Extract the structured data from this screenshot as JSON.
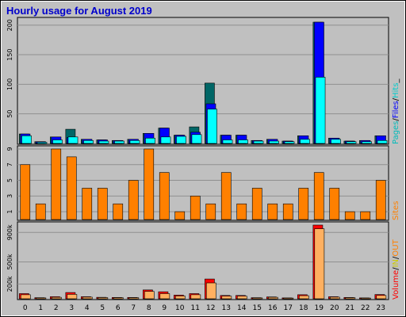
{
  "chart_data": {
    "type": "bar",
    "title": "Hourly usage for August 2019",
    "hours": [
      "0",
      "1",
      "2",
      "3",
      "4",
      "5",
      "6",
      "7",
      "8",
      "9",
      "10",
      "11",
      "12",
      "13",
      "14",
      "15",
      "16",
      "17",
      "18",
      "19",
      "20",
      "21",
      "22",
      "23"
    ],
    "colors": {
      "title": "#0000cc",
      "background": "#c0c0c0",
      "pages": "#006666",
      "files": "#0000ff",
      "hits": "#00ffff",
      "sites": "#ff8000",
      "volume": "#ff0000",
      "in": "#ffff00",
      "out": "#ff8000",
      "visits_legend": "#00aa00"
    },
    "panels": [
      {
        "id": "top",
        "legend": [
          {
            "text": "Pages",
            "color": "#00bbbb"
          },
          {
            "text": "/",
            "color": "#000000"
          },
          {
            "text": "Files",
            "color": "#0000ff"
          },
          {
            "text": "/",
            "color": "#000000"
          },
          {
            "text": "Hits",
            "color": "#00cccc"
          },
          {
            "text": "_",
            "color": "#000000"
          }
        ],
        "ylim": [
          0,
          205
        ],
        "ticks": [
          "50",
          "100",
          "150",
          "200"
        ],
        "tick_values": [
          50,
          100,
          150,
          200
        ],
        "series": [
          {
            "values": [
              16,
              3,
              11,
              24,
              7,
              6,
              5,
              7,
              17,
              26,
              14,
              28,
              102,
              14,
              14,
              5,
              7,
              4,
              13,
              205,
              9,
              4,
              5,
              13
            ]
          },
          {
            "values": [
              16,
              3,
              11,
              10,
              7,
              6,
              5,
              7,
              17,
              26,
              14,
              19,
              67,
              14,
              14,
              5,
              7,
              4,
              13,
              205,
              9,
              4,
              5,
              13
            ]
          },
          {
            "values": [
              13,
              2,
              6,
              11,
              5,
              4,
              4,
              5,
              9,
              11,
              12,
              15,
              58,
              6,
              6,
              4,
              4,
              3,
              7,
              112,
              7,
              3,
              3,
              5
            ]
          }
        ]
      },
      {
        "id": "middle",
        "legend": [
          {
            "text": "Sites",
            "color": "#ff8000"
          }
        ],
        "ylim": [
          0,
          9
        ],
        "ticks": [
          "1",
          "3",
          "5",
          "7",
          "9"
        ],
        "tick_values": [
          1,
          3,
          5,
          7,
          9
        ],
        "series": [
          {
            "values": [
              7,
              2,
              9,
              8,
              4,
              4,
              2,
              5,
              9,
              6,
              1,
              3,
              2,
              6,
              2,
              4,
              2,
              2,
              4,
              6,
              4,
              1,
              1,
              5
            ]
          }
        ]
      },
      {
        "id": "bottom",
        "legend": [
          {
            "text": "Volume",
            "color": "#ff0000"
          },
          {
            "text": "/",
            "color": "#000000"
          },
          {
            "text": "IN",
            "color": "#cccc00"
          },
          {
            "text": "/",
            "color": "#000000"
          },
          {
            "text": "OUT",
            "color": "#ff8000"
          },
          {
            "text": "Sites",
            "color": "#ff8000",
            "hidden": true
          }
        ],
        "legend_unit": "Volume / IN / OUT",
        "ylim": [
          0,
          1000
        ],
        "ticks": [
          "200k",
          "500k",
          "900k"
        ],
        "tick_values": [
          200,
          500,
          900
        ],
        "series": [
          {
            "values": [
              70,
              15,
              28,
              85,
              28,
              20,
              18,
              18,
              120,
              95,
              50,
              70,
              268,
              45,
              45,
              15,
              25,
              12,
              55,
              1000,
              28,
              18,
              12,
              58
            ]
          },
          {
            "values": [
              55,
              12,
              20,
              60,
              22,
              16,
              15,
              15,
              100,
              70,
              38,
              55,
              215,
              36,
              36,
              12,
              20,
              10,
              42,
              950,
              22,
              15,
              10,
              45
            ]
          }
        ]
      }
    ]
  }
}
